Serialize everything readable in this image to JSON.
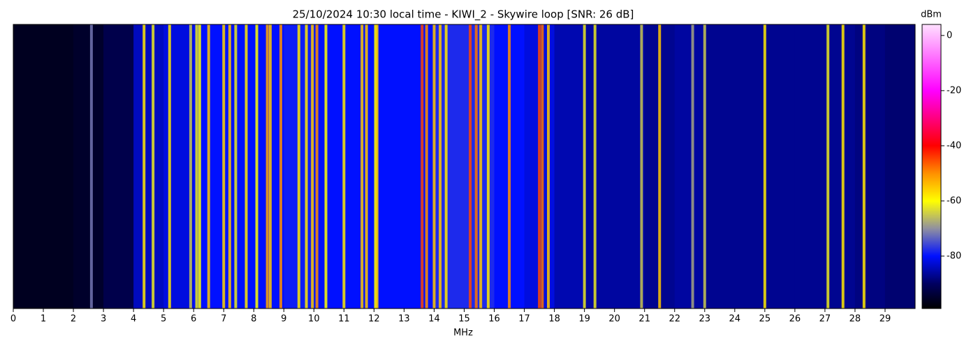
{
  "chart_data": {
    "type": "spectrogram",
    "title": "25/10/2024 10:30 local time - KIWI_2 - Skywire loop [SNR: 26 dB]",
    "xlabel": "MHz",
    "colorbar_label": "dBm",
    "xlim": [
      0,
      30
    ],
    "xticks": [
      0,
      1,
      2,
      3,
      4,
      5,
      6,
      7,
      8,
      9,
      10,
      11,
      12,
      13,
      14,
      15,
      16,
      17,
      18,
      19,
      20,
      21,
      22,
      23,
      24,
      25,
      26,
      27,
      28,
      29
    ],
    "clim": [
      -99,
      4
    ],
    "cticks": [
      0,
      -20,
      -40,
      -60,
      -80
    ],
    "colormap": [
      {
        "value": -99,
        "color": "#000000"
      },
      {
        "value": -90,
        "color": "#000060"
      },
      {
        "value": -80,
        "color": "#0010ff"
      },
      {
        "value": -70,
        "color": "#9090a0"
      },
      {
        "value": -60,
        "color": "#ffff00"
      },
      {
        "value": -50,
        "color": "#ff9000"
      },
      {
        "value": -40,
        "color": "#ff0000"
      },
      {
        "value": -20,
        "color": "#ff00ff"
      },
      {
        "value": 4,
        "color": "#ffe0ff"
      }
    ],
    "floor": {
      "bins": [
        0,
        1,
        2,
        3,
        4,
        5,
        6,
        7,
        8,
        9,
        10,
        11,
        12,
        13,
        14,
        15,
        16,
        17,
        18,
        19,
        20,
        21,
        22,
        23,
        24,
        25,
        26,
        27,
        28,
        29,
        30
      ],
      "values": [
        -96,
        -96,
        -95,
        -92,
        -84,
        -82,
        -80,
        -80,
        -80,
        -79,
        -80,
        -80,
        -80,
        -80,
        -78,
        -78,
        -80,
        -82,
        -85,
        -86,
        -86,
        -87,
        -86,
        -87,
        -87,
        -87,
        -87,
        -87,
        -88,
        -89
      ]
    },
    "signals": {
      "x": [
        2.6,
        4.35,
        4.65,
        5.2,
        5.9,
        6.1,
        6.2,
        6.5,
        7.0,
        7.2,
        7.4,
        7.75,
        8.1,
        8.45,
        8.55,
        8.9,
        9.5,
        9.75,
        9.95,
        10.1,
        10.4,
        11.0,
        11.6,
        11.75,
        12.05,
        12.1,
        13.6,
        13.75,
        14.0,
        14.2,
        14.4,
        15.2,
        15.4,
        15.55,
        15.8,
        16.5,
        17.5,
        17.6,
        17.8,
        19.0,
        19.35,
        20.9,
        21.5,
        22.6,
        23.0,
        25.0,
        27.1,
        27.6,
        28.3
      ],
      "values": [
        -72,
        -58,
        -62,
        -58,
        -65,
        -62,
        -60,
        -55,
        -56,
        -55,
        -62,
        -58,
        -60,
        -52,
        -55,
        -50,
        -58,
        -58,
        -55,
        -50,
        -60,
        -58,
        -55,
        -55,
        -60,
        -56,
        -45,
        -50,
        -55,
        -55,
        -58,
        -45,
        -48,
        -55,
        -58,
        -50,
        -45,
        -48,
        -55,
        -62,
        -62,
        -65,
        -55,
        -68,
        -65,
        -58,
        -62,
        -58,
        -58
      ]
    }
  }
}
